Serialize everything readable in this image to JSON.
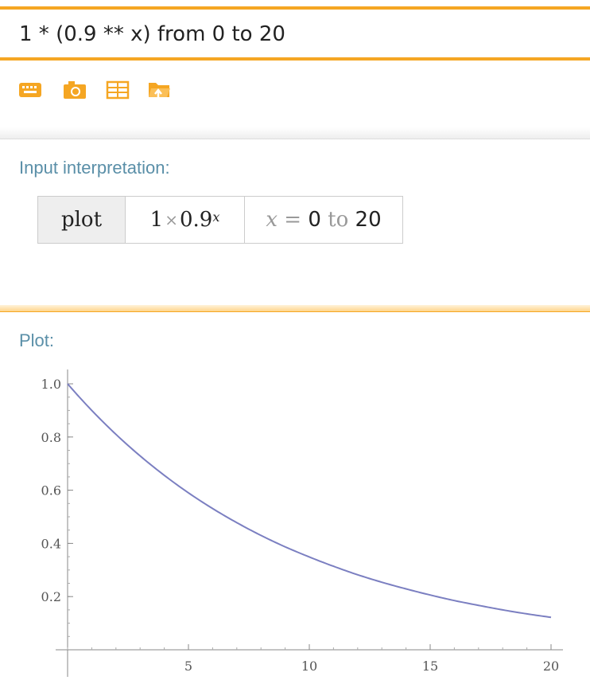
{
  "query": {
    "text": "1 * (0.9 ** x) from 0 to 20"
  },
  "toolbar": {
    "icons": [
      "keyboard-icon",
      "camera-icon",
      "table-icon",
      "folder-upload-icon"
    ],
    "accent": "#f5a623"
  },
  "input_interpretation": {
    "title": "Input interpretation:",
    "head": "plot",
    "expr_coef": "1",
    "expr_times": "×",
    "expr_base": "0.9",
    "expr_exp": "x",
    "range_var": "x",
    "range_eq": " = ",
    "range_from": "0",
    "range_to_word": " to ",
    "range_to": "20"
  },
  "plot": {
    "title": "Plot:"
  },
  "chart_data": {
    "type": "line",
    "title": "",
    "xlabel": "",
    "ylabel": "",
    "xlim": [
      0,
      20
    ],
    "ylim": [
      0,
      1.0
    ],
    "xticks": [
      5,
      10,
      15,
      20
    ],
    "yticks": [
      0.2,
      0.4,
      0.6,
      0.8,
      1.0
    ],
    "xtick_labels": [
      "5",
      "10",
      "15",
      "20"
    ],
    "ytick_labels": [
      "0.2",
      "0.4",
      "0.6",
      "0.8",
      "1.0"
    ],
    "series": [
      {
        "color": "#7b7fc1",
        "x": [
          0,
          1,
          2,
          3,
          4,
          5,
          6,
          7,
          8,
          9,
          10,
          11,
          12,
          13,
          14,
          15,
          16,
          17,
          18,
          19,
          20
        ],
        "y": [
          1.0,
          0.9,
          0.81,
          0.729,
          0.656,
          0.59,
          0.531,
          0.478,
          0.43,
          0.387,
          0.349,
          0.314,
          0.282,
          0.254,
          0.229,
          0.206,
          0.185,
          0.167,
          0.15,
          0.135,
          0.122
        ]
      }
    ],
    "grid": false
  }
}
